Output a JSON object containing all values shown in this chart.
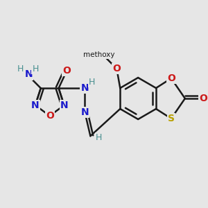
{
  "background_color": "#e6e6e6",
  "bond_color": "#1a1a1a",
  "bond_width": 1.8,
  "figsize": [
    3.0,
    3.0
  ],
  "dpi": 100,
  "colors": {
    "N": "#1a1acc",
    "O": "#cc1a1a",
    "S": "#b8a000",
    "H": "#4a9090",
    "C": "#1a1a1a"
  }
}
